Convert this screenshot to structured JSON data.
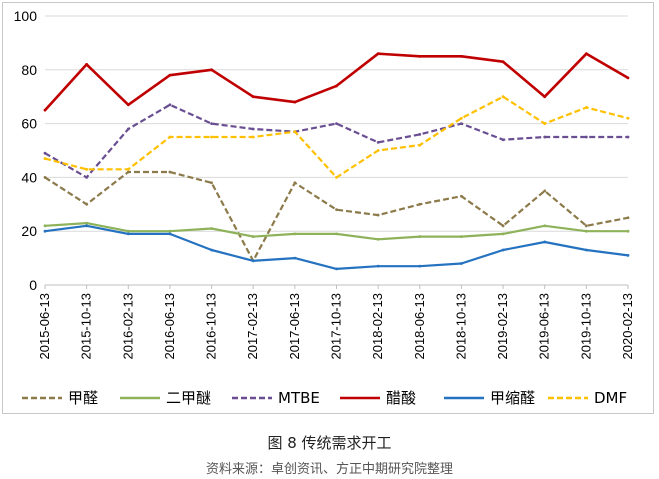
{
  "caption": "图 8  传统需求开工",
  "source": "资料来源：卓创资讯、方正中期研究院整理",
  "chart_data": {
    "type": "line",
    "title": "",
    "xlabel": "",
    "ylabel": "",
    "ylim": [
      0,
      100
    ],
    "yticks": [
      0,
      20,
      40,
      60,
      80,
      100
    ],
    "x": [
      "2015-06-13",
      "2015-10-13",
      "2016-02-13",
      "2016-06-13",
      "2016-10-13",
      "2017-02-13",
      "2017-06-13",
      "2017-10-13",
      "2018-02-13",
      "2018-06-13",
      "2018-10-13",
      "2019-02-13",
      "2019-06-13",
      "2019-10-13",
      "2020-02-13"
    ],
    "xticks": [
      "2015-06-13",
      "2015-10-13",
      "2016-02-13",
      "2016-06-13",
      "2016-10-13",
      "2017-02-13",
      "2017-06-13",
      "2017-10-13",
      "2018-02-13",
      "2018-06-13",
      "2018-10-13",
      "2019-02-13",
      "2019-06-13",
      "2019-10-13",
      "2020-02-13"
    ],
    "legend_position": "bottom",
    "series": [
      {
        "name": "甲醛",
        "color": "#8c7a4a",
        "dash": "dashed",
        "values": [
          40,
          30,
          42,
          42,
          38,
          9,
          38,
          28,
          26,
          30,
          33,
          22,
          35,
          22,
          25
        ]
      },
      {
        "name": "二甲醚",
        "color": "#8db25a",
        "dash": "solid",
        "values": [
          22,
          23,
          20,
          20,
          21,
          18,
          19,
          19,
          17,
          18,
          18,
          19,
          22,
          20,
          20
        ]
      },
      {
        "name": "MTBE",
        "color": "#6a4e92",
        "dash": "dashed",
        "values": [
          49,
          40,
          58,
          67,
          60,
          58,
          57,
          60,
          53,
          56,
          60,
          54,
          55,
          55,
          55
        ]
      },
      {
        "name": "醋酸",
        "color": "#c00000",
        "dash": "solid",
        "values": [
          65,
          82,
          67,
          78,
          80,
          70,
          68,
          74,
          86,
          85,
          85,
          83,
          70,
          86,
          77
        ]
      },
      {
        "name": "甲缩醛",
        "color": "#2472c0",
        "dash": "solid",
        "values": [
          20,
          22,
          19,
          19,
          13,
          9,
          10,
          6,
          7,
          7,
          8,
          13,
          16,
          13,
          11
        ]
      },
      {
        "name": "DMF",
        "color": "#ffc000",
        "dash": "dashed",
        "values": [
          47,
          43,
          43,
          55,
          55,
          55,
          57,
          40,
          50,
          52,
          62,
          70,
          60,
          66,
          62
        ]
      }
    ]
  }
}
